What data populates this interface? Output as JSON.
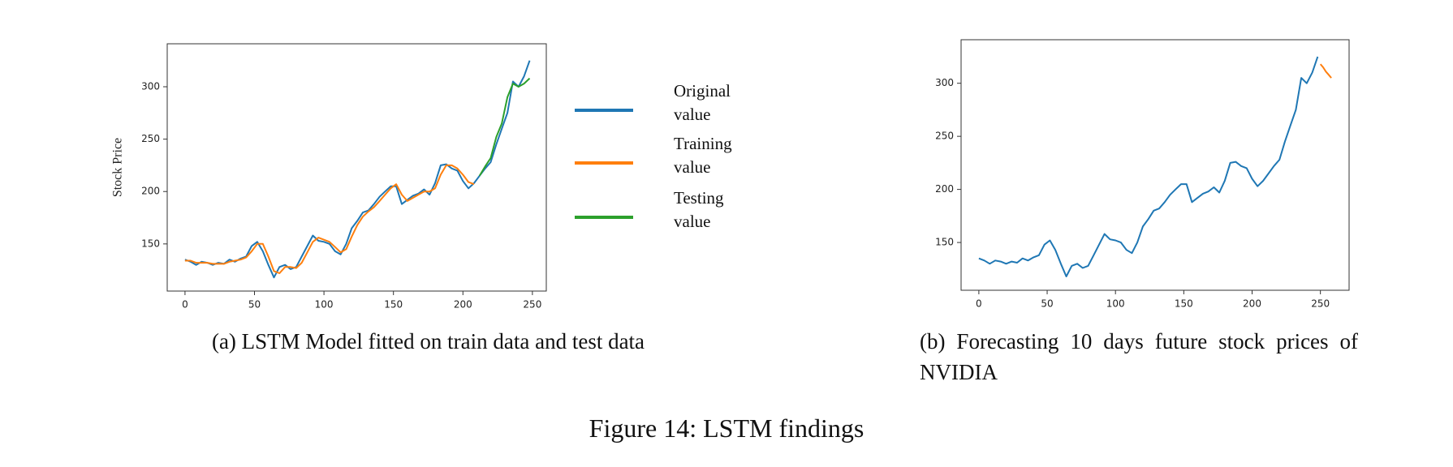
{
  "figure_caption": "Figure 14: LSTM findings",
  "chart_data": [
    {
      "type": "line",
      "caption": "(a) LSTM Model fitted on train data and test data",
      "y_label": "Stock Price",
      "xlim": [
        -12.8,
        260
      ],
      "ylim": [
        105,
        341
      ],
      "xticks": [
        0,
        50,
        100,
        150,
        200,
        250
      ],
      "yticks": [
        150,
        200,
        250,
        300
      ],
      "grid": false,
      "legend": "outside right",
      "series": [
        {
          "name": "Original value",
          "color": "#1f77b4",
          "x": [
            0,
            4,
            8,
            12,
            16,
            20,
            24,
            28,
            32,
            36,
            40,
            44,
            48,
            52,
            56,
            60,
            64,
            68,
            72,
            76,
            80,
            84,
            88,
            92,
            96,
            100,
            104,
            108,
            112,
            116,
            120,
            124,
            128,
            132,
            136,
            140,
            144,
            148,
            152,
            156,
            160,
            164,
            168,
            172,
            176,
            180,
            184,
            188,
            192,
            196,
            200,
            204,
            208,
            212,
            216,
            220,
            224,
            228,
            232,
            236,
            240,
            244,
            248
          ],
          "values": [
            135,
            133,
            130,
            133,
            132,
            130,
            132,
            131,
            135,
            133,
            136,
            138,
            148,
            152,
            143,
            130,
            118,
            128,
            130,
            126,
            128,
            138,
            148,
            158,
            153,
            152,
            150,
            143,
            140,
            150,
            165,
            172,
            180,
            182,
            188,
            195,
            200,
            205,
            205,
            188,
            192,
            196,
            198,
            202,
            197,
            208,
            225,
            226,
            222,
            220,
            210,
            203,
            208,
            215,
            222,
            228,
            245,
            260,
            275,
            305,
            300,
            310,
            325
          ]
        },
        {
          "name": "Training value",
          "color": "#ff7f0e",
          "x": [
            0,
            4,
            8,
            12,
            16,
            20,
            24,
            28,
            32,
            36,
            40,
            44,
            48,
            52,
            56,
            60,
            64,
            68,
            72,
            76,
            80,
            84,
            88,
            92,
            96,
            100,
            104,
            108,
            112,
            116,
            120,
            124,
            128,
            132,
            136,
            140,
            144,
            148,
            152,
            156,
            160,
            164,
            168,
            172,
            176,
            180,
            184,
            188,
            192,
            196,
            200,
            204,
            208
          ],
          "values": [
            134,
            134,
            132,
            132,
            132,
            131,
            131,
            131,
            133,
            134,
            135,
            137,
            143,
            150,
            150,
            138,
            124,
            122,
            128,
            128,
            127,
            132,
            142,
            152,
            156,
            154,
            152,
            147,
            142,
            145,
            157,
            168,
            176,
            181,
            185,
            191,
            197,
            203,
            207,
            197,
            191,
            194,
            197,
            200,
            200,
            203,
            216,
            225,
            225,
            222,
            216,
            209,
            207
          ]
        },
        {
          "name": "Testing value",
          "color": "#2ca02c",
          "x": [
            212,
            216,
            220,
            224,
            228,
            232,
            236,
            240,
            244,
            248
          ],
          "values": [
            215,
            224,
            232,
            252,
            265,
            290,
            303,
            300,
            303,
            308
          ]
        }
      ]
    },
    {
      "type": "line",
      "caption": "(b) Forecasting 10 days future stock prices of NVIDIA",
      "xlim": [
        -13,
        271
      ],
      "ylim": [
        105,
        341
      ],
      "xticks": [
        0,
        50,
        100,
        150,
        200,
        250
      ],
      "yticks": [
        150,
        200,
        250,
        300
      ],
      "grid": false,
      "series": [
        {
          "color": "#1f77b4",
          "x": [
            0,
            4,
            8,
            12,
            16,
            20,
            24,
            28,
            32,
            36,
            40,
            44,
            48,
            52,
            56,
            60,
            64,
            68,
            72,
            76,
            80,
            84,
            88,
            92,
            96,
            100,
            104,
            108,
            112,
            116,
            120,
            124,
            128,
            132,
            136,
            140,
            144,
            148,
            152,
            156,
            160,
            164,
            168,
            172,
            176,
            180,
            184,
            188,
            192,
            196,
            200,
            204,
            208,
            212,
            216,
            220,
            224,
            228,
            232,
            236,
            240,
            244,
            248
          ],
          "values": [
            135,
            133,
            130,
            133,
            132,
            130,
            132,
            131,
            135,
            133,
            136,
            138,
            148,
            152,
            143,
            130,
            118,
            128,
            130,
            126,
            128,
            138,
            148,
            158,
            153,
            152,
            150,
            143,
            140,
            150,
            165,
            172,
            180,
            182,
            188,
            195,
            200,
            205,
            205,
            188,
            192,
            196,
            198,
            202,
            197,
            208,
            225,
            226,
            222,
            220,
            210,
            203,
            208,
            215,
            222,
            228,
            245,
            260,
            275,
            305,
            300,
            310,
            325
          ]
        },
        {
          "color": "#ff7f0e",
          "x": [
            250,
            252,
            254,
            256,
            258
          ],
          "values": [
            318,
            315,
            311,
            308,
            305
          ]
        }
      ]
    }
  ]
}
